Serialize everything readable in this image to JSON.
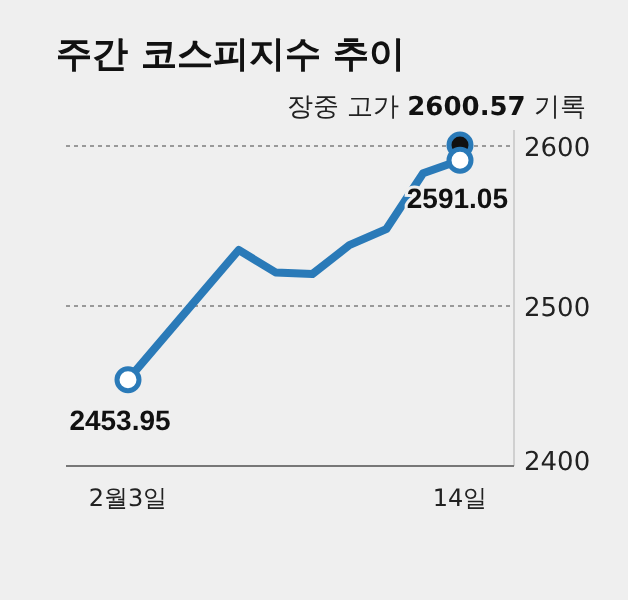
{
  "chart_data": {
    "type": "line",
    "title": "주간 코스피지수 추이",
    "categories": [
      "2월3일",
      null,
      null,
      null,
      null,
      null,
      null,
      null,
      null,
      "14일"
    ],
    "series": [
      {
        "color": "#2a7ab8",
        "values": [
          2453.95,
          2481,
          2508,
          2535,
          2521,
          2520,
          2538,
          2548,
          2583,
          2591.05
        ],
        "value_labels": [
          "2453.95",
          null,
          null,
          null,
          null,
          null,
          null,
          null,
          null,
          "2591.05"
        ]
      },
      {
        "type": "scatter",
        "color": "#111111",
        "marker": "circle",
        "values": [
          null,
          null,
          null,
          null,
          null,
          null,
          null,
          null,
          null,
          2600.57
        ]
      },
      {
        "type": "scatter",
        "color": "#ffffff",
        "marker": "circle",
        "values": [
          2453.95,
          null,
          null,
          null,
          null,
          null,
          null,
          null,
          null,
          2591.05
        ]
      }
    ],
    "ylim": [
      2400,
      2610
    ],
    "yticks": [
      2400,
      2500,
      2600
    ],
    "grid": "y",
    "annotations": [
      {
        "text": "장중 고가 2600.57 기록",
        "x": "14일",
        "y": 2600.57
      }
    ]
  }
}
